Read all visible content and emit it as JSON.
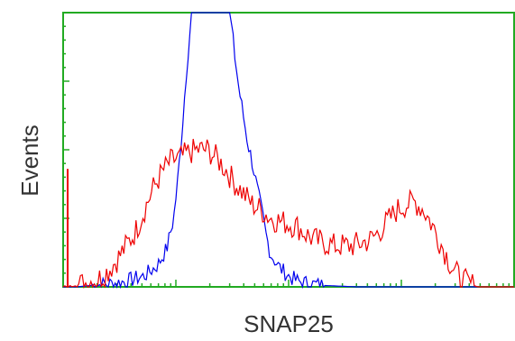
{
  "chart_data": {
    "type": "line",
    "xlabel": "SNAP25",
    "ylabel": "Events",
    "x_scale": "log",
    "xlim": [
      0,
      1
    ],
    "ylim": [
      0,
      1
    ],
    "grid": false,
    "legend": "none",
    "frame_color": "#22aa22",
    "series": [
      {
        "color": "#0000ee",
        "points": [
          [
            0.0,
            0.0
          ],
          [
            0.03,
            0.0
          ],
          [
            0.06,
            0.005
          ],
          [
            0.1,
            0.01
          ],
          [
            0.14,
            0.02
          ],
          [
            0.18,
            0.04
          ],
          [
            0.21,
            0.08
          ],
          [
            0.23,
            0.14
          ],
          [
            0.245,
            0.25
          ],
          [
            0.255,
            0.4
          ],
          [
            0.265,
            0.6
          ],
          [
            0.275,
            0.82
          ],
          [
            0.285,
            1.0
          ],
          [
            0.3,
            1.0
          ],
          [
            0.34,
            1.0
          ],
          [
            0.37,
            1.0
          ],
          [
            0.38,
            0.85
          ],
          [
            0.39,
            0.72
          ],
          [
            0.4,
            0.62
          ],
          [
            0.41,
            0.52
          ],
          [
            0.42,
            0.45
          ],
          [
            0.43,
            0.36
          ],
          [
            0.44,
            0.28
          ],
          [
            0.45,
            0.19
          ],
          [
            0.46,
            0.12
          ],
          [
            0.48,
            0.07
          ],
          [
            0.5,
            0.04
          ],
          [
            0.52,
            0.02
          ],
          [
            0.55,
            0.01
          ],
          [
            0.58,
            0.005
          ],
          [
            0.65,
            0.0
          ],
          [
            1.0,
            0.0
          ]
        ]
      },
      {
        "color": "#ee0000",
        "points": [
          [
            0.0,
            0.0
          ],
          [
            0.01,
            0.01
          ],
          [
            0.02,
            0.0
          ],
          [
            0.04,
            0.01
          ],
          [
            0.06,
            0.02
          ],
          [
            0.08,
            0.03
          ],
          [
            0.1,
            0.06
          ],
          [
            0.12,
            0.1
          ],
          [
            0.14,
            0.15
          ],
          [
            0.16,
            0.2
          ],
          [
            0.18,
            0.28
          ],
          [
            0.2,
            0.36
          ],
          [
            0.22,
            0.42
          ],
          [
            0.24,
            0.46
          ],
          [
            0.26,
            0.47
          ],
          [
            0.28,
            0.49
          ],
          [
            0.3,
            0.5
          ],
          [
            0.32,
            0.5
          ],
          [
            0.34,
            0.47
          ],
          [
            0.36,
            0.43
          ],
          [
            0.38,
            0.38
          ],
          [
            0.4,
            0.34
          ],
          [
            0.42,
            0.3
          ],
          [
            0.44,
            0.28
          ],
          [
            0.46,
            0.25
          ],
          [
            0.48,
            0.24
          ],
          [
            0.5,
            0.23
          ],
          [
            0.52,
            0.22
          ],
          [
            0.54,
            0.19
          ],
          [
            0.56,
            0.17
          ],
          [
            0.58,
            0.16
          ],
          [
            0.6,
            0.15
          ],
          [
            0.62,
            0.15
          ],
          [
            0.64,
            0.15
          ],
          [
            0.66,
            0.16
          ],
          [
            0.68,
            0.17
          ],
          [
            0.7,
            0.2
          ],
          [
            0.72,
            0.24
          ],
          [
            0.74,
            0.28
          ],
          [
            0.76,
            0.3
          ],
          [
            0.78,
            0.31
          ],
          [
            0.8,
            0.28
          ],
          [
            0.82,
            0.22
          ],
          [
            0.84,
            0.15
          ],
          [
            0.86,
            0.08
          ],
          [
            0.88,
            0.03
          ],
          [
            0.9,
            0.01
          ],
          [
            0.92,
            0.0
          ],
          [
            1.0,
            0.0
          ]
        ]
      }
    ]
  }
}
